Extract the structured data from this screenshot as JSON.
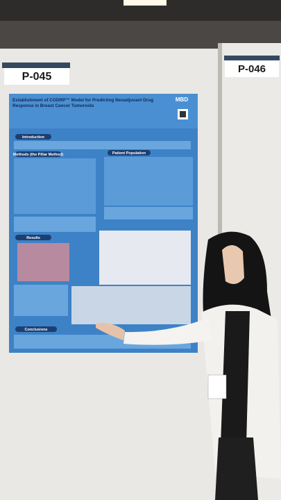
{
  "boards": [
    {
      "label": "P-045"
    },
    {
      "label": "P-046"
    }
  ],
  "poster": {
    "title": "Establishment of CODRP™ Model for Predicting Neoadjuvant Drug Response in Breast Cancer Tumoroids",
    "logo": "MBD",
    "sections": [
      "Introduction",
      "Methods (the Pillar Method)",
      "Patient Population",
      "Results",
      "Conclusions"
    ]
  }
}
